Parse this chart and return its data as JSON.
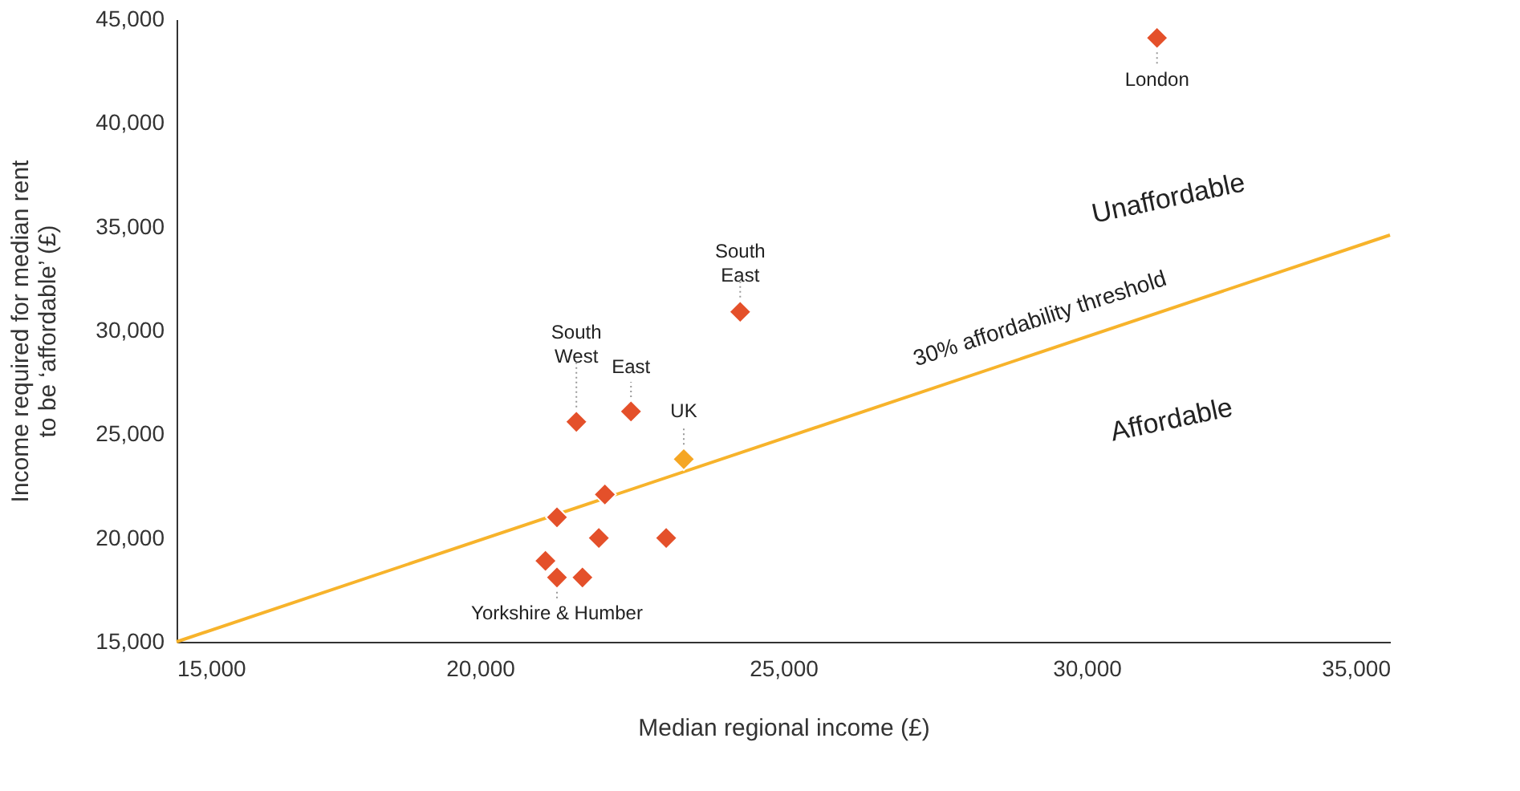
{
  "chart_data": {
    "type": "scatter",
    "xlabel": "Median regional income (£)",
    "ylabel": "Income required for median rent\nto be ‘affordable’ (£)",
    "xlim": [
      15000,
      35000
    ],
    "xticks": [
      {
        "value": 15000,
        "label": "15,000"
      },
      {
        "value": 20000,
        "label": "20,000"
      },
      {
        "value": 25000,
        "label": "25,000"
      },
      {
        "value": 30000,
        "label": "30,000"
      },
      {
        "value": 35000,
        "label": "35,000"
      }
    ],
    "ylim": [
      15000,
      45000
    ],
    "yticks": [
      {
        "value": 15000,
        "label": "15,000"
      },
      {
        "value": 20000,
        "label": "20,000"
      },
      {
        "value": 25000,
        "label": "25,000"
      },
      {
        "value": 30000,
        "label": "30,000"
      },
      {
        "value": 35000,
        "label": "35,000"
      },
      {
        "value": 40000,
        "label": "40,000"
      },
      {
        "value": 45000,
        "label": "45,000"
      }
    ],
    "grid": false,
    "legend": false,
    "marker": "diamond",
    "series": [
      {
        "type": "scatter",
        "x": [
          31160,
          24290,
          22490,
          21590,
          23360,
          22060,
          21270,
          21960,
          23070,
          21080,
          21270,
          21690
        ],
        "values": [
          44100,
          30900,
          26100,
          25600,
          23800,
          22100,
          21000,
          20000,
          20000,
          18900,
          18100,
          18100
        ],
        "colors": [
          "#e4502a",
          "#e4502a",
          "#e4502a",
          "#e4502a",
          "#f5a623",
          "#e4502a",
          "#e4502a",
          "#e4502a",
          "#e4502a",
          "#e4502a",
          "#e4502a",
          "#e4502a"
        ]
      },
      {
        "type": "line",
        "color": "#f7b32b",
        "x": [
          15000,
          35000
        ],
        "values": [
          15000,
          34600
        ],
        "marker": "none",
        "line_style": "solid"
      }
    ],
    "annotations": [
      {
        "text": "London",
        "x": 31160,
        "y": 44100
      },
      {
        "text": "South\nEast",
        "x": 24290,
        "y": 30900
      },
      {
        "text": "South\nWest",
        "x": 21590,
        "y": 25600
      },
      {
        "text": "East",
        "x": 22490,
        "y": 26100
      },
      {
        "text": "UK",
        "x": 23360,
        "y": 23800
      },
      {
        "text": "Yorkshire & Humber",
        "x": 21270,
        "y": 18100
      },
      "30% affordability threshold",
      "Unaffordable",
      "Affordable"
    ]
  }
}
